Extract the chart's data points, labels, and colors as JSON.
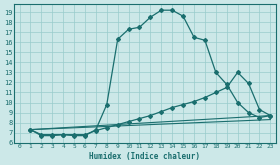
{
  "xlabel": "Humidex (Indice chaleur)",
  "bg_color": "#cce8e8",
  "grid_color": "#99cccc",
  "line_color": "#1a6e6e",
  "xlim": [
    -0.5,
    23.5
  ],
  "ylim": [
    6.0,
    19.8
  ],
  "yticks": [
    6,
    7,
    8,
    9,
    10,
    11,
    12,
    13,
    14,
    15,
    16,
    17,
    18,
    19
  ],
  "xticks": [
    0,
    1,
    2,
    3,
    4,
    5,
    6,
    7,
    8,
    9,
    10,
    11,
    12,
    13,
    14,
    15,
    16,
    17,
    18,
    19,
    20,
    21,
    22,
    23
  ],
  "curve1_x": [
    1,
    2,
    3,
    4,
    5,
    6,
    7,
    8,
    9,
    10,
    11,
    12,
    13,
    14,
    15,
    16,
    17,
    18,
    19,
    20,
    21,
    22,
    23
  ],
  "curve1_y": [
    7.3,
    6.7,
    6.7,
    6.8,
    6.7,
    6.7,
    7.3,
    9.8,
    16.3,
    17.3,
    17.5,
    18.5,
    19.2,
    19.2,
    18.6,
    16.5,
    16.2,
    13.0,
    11.8,
    10.0,
    9.0,
    8.5,
    8.7
  ],
  "curve2_x": [
    1,
    2,
    3,
    4,
    5,
    6,
    7,
    8,
    9,
    10,
    11,
    12,
    13,
    14,
    15,
    16,
    17,
    18,
    19,
    20,
    21,
    22,
    23
  ],
  "curve2_y": [
    7.3,
    6.8,
    6.8,
    6.8,
    6.8,
    6.8,
    7.2,
    7.5,
    7.8,
    8.1,
    8.4,
    8.7,
    9.1,
    9.5,
    9.8,
    10.1,
    10.5,
    11.0,
    11.5,
    13.0,
    11.9,
    9.3,
    8.7
  ],
  "curve3_x": [
    1,
    23
  ],
  "curve3_y": [
    7.3,
    8.7
  ],
  "curve4_x": [
    1,
    23
  ],
  "curve4_y": [
    7.3,
    8.3
  ]
}
